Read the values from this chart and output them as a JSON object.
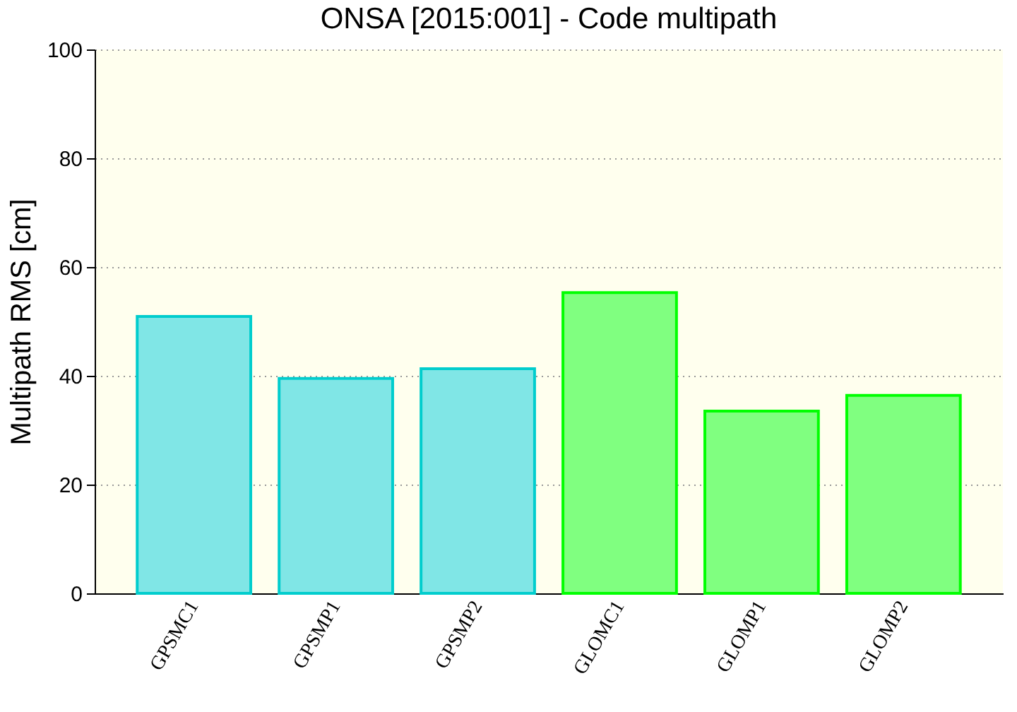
{
  "chart_data": {
    "type": "bar",
    "title": "ONSA [2015:001] - Code multipath",
    "ylabel": "Multipath RMS [cm]",
    "categories": [
      "GPSMC1",
      "GPSMP1",
      "GPSMP2",
      "GLOMC1",
      "GLOMP1",
      "GLOMP2"
    ],
    "values": [
      50.9,
      39.5,
      41.3,
      55.3,
      33.5,
      36.4
    ],
    "colors": [
      "#80e6e6",
      "#80e6e6",
      "#80e6e6",
      "#80ff80",
      "#80ff80",
      "#80ff80"
    ],
    "ylim": [
      0,
      100
    ],
    "yticks": [
      0,
      20,
      40,
      60,
      80,
      100
    ],
    "grid": "y"
  }
}
